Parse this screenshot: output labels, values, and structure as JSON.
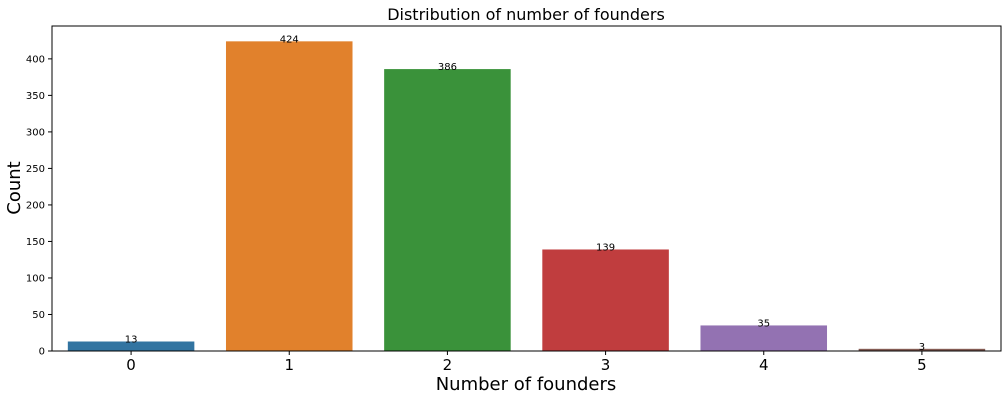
{
  "chart_data": {
    "type": "bar",
    "title": "Distribution of number of founders",
    "xlabel": "Number of founders",
    "ylabel": "Count",
    "categories": [
      "0",
      "1",
      "2",
      "3",
      "4",
      "5"
    ],
    "values": [
      13,
      424,
      386,
      139,
      35,
      3
    ],
    "data_labels": [
      "13",
      "424",
      "386",
      "139",
      "35",
      "3"
    ],
    "ylim": [
      0,
      445
    ],
    "yticks": [
      0,
      50,
      100,
      150,
      200,
      250,
      300,
      350,
      400
    ],
    "colors": [
      "#3274a1",
      "#e1812c",
      "#3a923a",
      "#c03d3e",
      "#9372b2",
      "#845b53"
    ],
    "grid": false
  }
}
